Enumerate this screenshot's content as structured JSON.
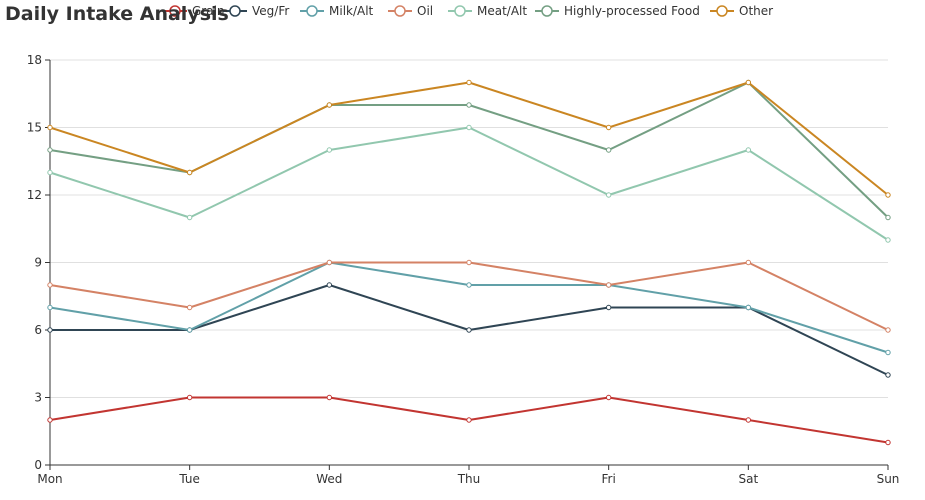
{
  "chart_data": {
    "type": "line",
    "title": "Daily Intake Analysis",
    "categories": [
      "Mon",
      "Tue",
      "Wed",
      "Thu",
      "Fri",
      "Sat",
      "Sun"
    ],
    "ylim": [
      0,
      18
    ],
    "yticks": [
      0,
      3,
      6,
      9,
      12,
      15,
      18
    ],
    "grid": true,
    "legend_position": "top",
    "series": [
      {
        "name": "Grain",
        "color": "#c23531",
        "values": [
          2,
          3,
          3,
          2,
          3,
          2,
          1
        ]
      },
      {
        "name": "Veg/Fr",
        "color": "#2f4554",
        "values": [
          6,
          6,
          8,
          6,
          7,
          7,
          4
        ]
      },
      {
        "name": "Milk/Alt",
        "color": "#61a0a8",
        "values": [
          7,
          6,
          9,
          8,
          8,
          7,
          5
        ]
      },
      {
        "name": "Oil",
        "color": "#d48265",
        "values": [
          8,
          7,
          9,
          9,
          8,
          9,
          6
        ]
      },
      {
        "name": "Meat/Alt",
        "color": "#91c7ae",
        "values": [
          13,
          11,
          14,
          15,
          12,
          14,
          10
        ]
      },
      {
        "name": "Highly-processed Food",
        "color": "#749f83",
        "values": [
          14,
          13,
          16,
          16,
          14,
          17,
          11
        ]
      },
      {
        "name": "Other",
        "color": "#ca8622",
        "values": [
          15,
          13,
          16,
          17,
          15,
          17,
          12
        ]
      }
    ]
  }
}
